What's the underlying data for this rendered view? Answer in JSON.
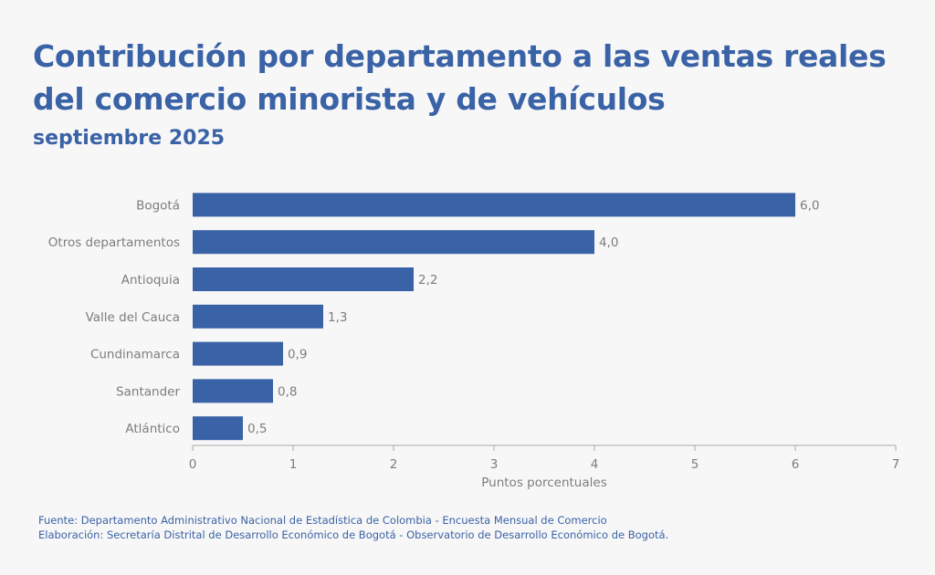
{
  "chart_data": {
    "type": "bar",
    "orientation": "horizontal",
    "title": "Contribución por departamento a las ventas reales del comercio minorista y de vehículos",
    "subtitle": "septiembre 2025",
    "categories": [
      "Bogotá",
      "Otros departamentos",
      "Antioquia",
      "Valle del Cauca",
      "Cundinamarca",
      "Santander",
      "Atlántico"
    ],
    "values": [
      6.0,
      4.0,
      2.2,
      1.3,
      0.9,
      0.8,
      0.5
    ],
    "data_labels": [
      "6,0",
      "4,0",
      "2,2",
      "1,3",
      "0,9",
      "0,8",
      "0,5"
    ],
    "xlabel": "Puntos porcentuales",
    "ylabel": "",
    "xlim": [
      0,
      7
    ],
    "xticks": [
      "0",
      "1",
      "2",
      "3",
      "4",
      "5",
      "6",
      "7"
    ],
    "grid": false,
    "bar_color": "#3a62a6"
  },
  "footer": {
    "source": "Fuente: Departamento Administrativo Nacional de Estadística de Colombia - Encuesta Mensual de Comercio",
    "elaboration": "Elaboración: Secretaría Distrital de Desarrollo Económico de Bogotá - Observatorio de Desarrollo Económico de Bogotá."
  }
}
